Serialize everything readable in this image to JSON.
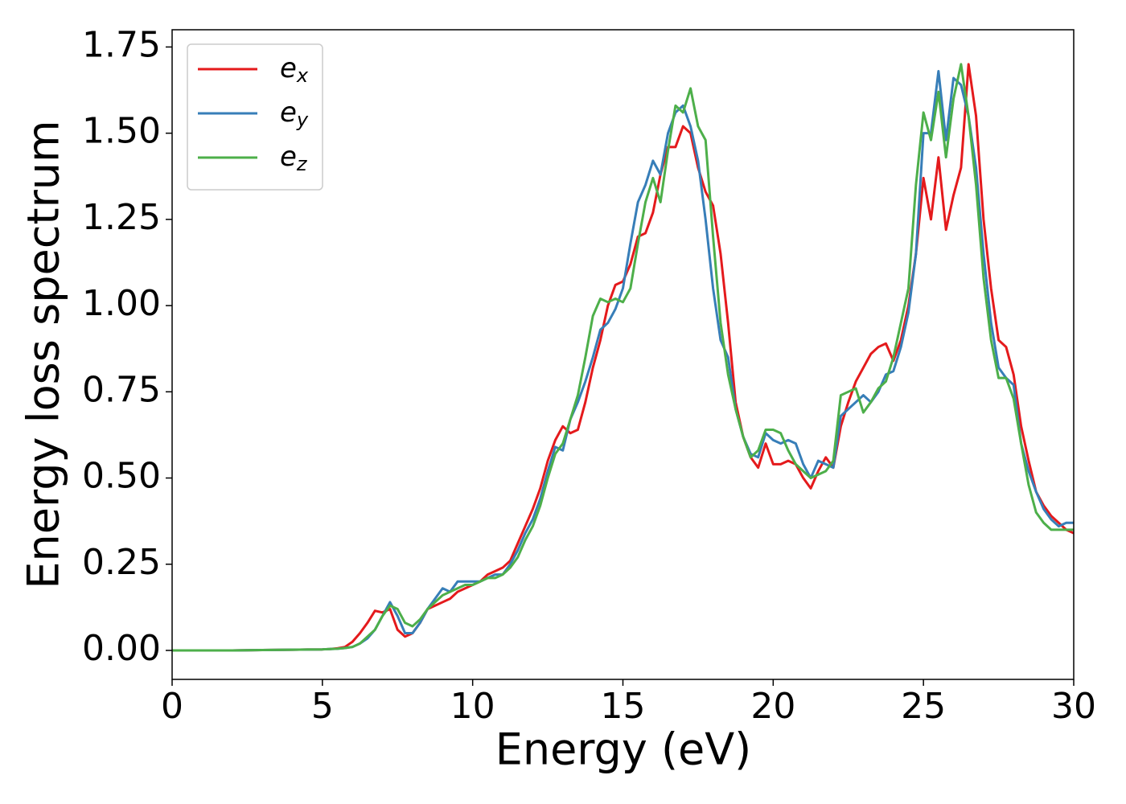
{
  "chart_data": {
    "type": "line",
    "xlabel": "Energy (eV)",
    "ylabel": "Energy loss spectrum",
    "xlim": [
      0,
      30
    ],
    "ylim": [
      -0.084,
      1.8
    ],
    "xticks": [
      0,
      5,
      10,
      15,
      20,
      25,
      30
    ],
    "yticks": [
      {
        "value": 0,
        "label": "0.00"
      },
      0.25,
      {
        "value": 0.5,
        "label": "0.50"
      },
      0.75,
      {
        "value": 1,
        "label": "1.00"
      },
      1.25,
      {
        "value": 1.5,
        "label": "1.50"
      },
      1.75
    ],
    "legend": "upper left",
    "x": [
      0,
      1,
      2,
      3,
      4,
      5,
      5.25,
      5.5,
      5.75,
      6,
      6.25,
      6.5,
      6.75,
      7,
      7.25,
      7.5,
      7.75,
      8,
      8.25,
      8.5,
      8.75,
      9,
      9.25,
      9.5,
      9.75,
      10,
      10.25,
      10.5,
      10.75,
      11,
      11.25,
      11.5,
      11.75,
      12,
      12.25,
      12.5,
      12.75,
      13,
      13.25,
      13.5,
      13.75,
      14,
      14.25,
      14.5,
      14.75,
      15,
      15.25,
      15.5,
      15.75,
      16,
      16.25,
      16.5,
      16.75,
      17,
      17.25,
      17.5,
      17.75,
      18,
      18.25,
      18.5,
      18.75,
      19,
      19.25,
      19.5,
      19.75,
      20,
      20.25,
      20.5,
      20.75,
      21,
      21.25,
      21.5,
      21.75,
      22,
      22.25,
      22.5,
      22.75,
      23,
      23.25,
      23.5,
      23.75,
      24,
      24.25,
      24.5,
      24.75,
      25,
      25.25,
      25.5,
      25.75,
      26,
      26.25,
      26.5,
      26.75,
      27,
      27.25,
      27.5,
      27.75,
      28,
      28.25,
      28.5,
      28.75,
      29,
      29.25,
      29.5,
      29.75,
      30
    ],
    "series": [
      {
        "name": "ex",
        "color": "#e41a1c",
        "values": [
          0,
          0,
          0,
          0.001,
          0.002,
          0.003,
          0.004,
          0.006,
          0.01,
          0.025,
          0.05,
          0.08,
          0.115,
          0.11,
          0.12,
          0.06,
          0.04,
          0.05,
          0.08,
          0.12,
          0.13,
          0.14,
          0.15,
          0.17,
          0.18,
          0.19,
          0.2,
          0.22,
          0.23,
          0.24,
          0.26,
          0.31,
          0.36,
          0.41,
          0.47,
          0.55,
          0.61,
          0.65,
          0.63,
          0.64,
          0.72,
          0.82,
          0.9,
          1.0,
          1.06,
          1.07,
          1.12,
          1.2,
          1.21,
          1.27,
          1.38,
          1.46,
          1.46,
          1.52,
          1.5,
          1.4,
          1.33,
          1.29,
          1.15,
          0.95,
          0.72,
          0.62,
          0.56,
          0.53,
          0.6,
          0.54,
          0.54,
          0.55,
          0.54,
          0.5,
          0.47,
          0.52,
          0.56,
          0.53,
          0.65,
          0.72,
          0.78,
          0.82,
          0.86,
          0.88,
          0.89,
          0.84,
          0.9,
          1.0,
          1.15,
          1.37,
          1.25,
          1.43,
          1.22,
          1.32,
          1.4,
          1.7,
          1.55,
          1.25,
          1.05,
          0.9,
          0.88,
          0.8,
          0.65,
          0.55,
          0.46,
          0.42,
          0.39,
          0.37,
          0.35,
          0.34
        ]
      },
      {
        "name": "ey",
        "color": "#377eb8",
        "values": [
          0,
          0,
          0,
          0.001,
          0.002,
          0.003,
          0.004,
          0.005,
          0.007,
          0.01,
          0.02,
          0.035,
          0.06,
          0.1,
          0.14,
          0.1,
          0.05,
          0.05,
          0.08,
          0.12,
          0.15,
          0.18,
          0.17,
          0.2,
          0.2,
          0.2,
          0.2,
          0.21,
          0.22,
          0.22,
          0.25,
          0.29,
          0.34,
          0.38,
          0.44,
          0.52,
          0.59,
          0.58,
          0.67,
          0.72,
          0.78,
          0.85,
          0.93,
          0.95,
          0.99,
          1.05,
          1.18,
          1.3,
          1.35,
          1.42,
          1.38,
          1.5,
          1.56,
          1.58,
          1.52,
          1.42,
          1.25,
          1.05,
          0.9,
          0.85,
          0.7,
          0.62,
          0.57,
          0.56,
          0.63,
          0.61,
          0.6,
          0.61,
          0.6,
          0.54,
          0.5,
          0.55,
          0.54,
          0.53,
          0.68,
          0.7,
          0.72,
          0.74,
          0.72,
          0.75,
          0.8,
          0.81,
          0.88,
          0.98,
          1.15,
          1.5,
          1.5,
          1.68,
          1.48,
          1.66,
          1.64,
          1.55,
          1.4,
          1.15,
          0.95,
          0.82,
          0.79,
          0.77,
          0.6,
          0.52,
          0.46,
          0.41,
          0.38,
          0.36,
          0.37,
          0.37
        ]
      },
      {
        "name": "ez",
        "color": "#4daf4a",
        "values": [
          0,
          0,
          0,
          0.001,
          0.002,
          0.003,
          0.004,
          0.005,
          0.007,
          0.01,
          0.02,
          0.04,
          0.06,
          0.1,
          0.13,
          0.12,
          0.08,
          0.07,
          0.09,
          0.12,
          0.14,
          0.16,
          0.17,
          0.18,
          0.19,
          0.19,
          0.2,
          0.21,
          0.21,
          0.22,
          0.24,
          0.27,
          0.32,
          0.36,
          0.42,
          0.5,
          0.57,
          0.6,
          0.67,
          0.74,
          0.85,
          0.97,
          1.02,
          1.01,
          1.02,
          1.01,
          1.05,
          1.18,
          1.3,
          1.37,
          1.3,
          1.45,
          1.58,
          1.56,
          1.63,
          1.52,
          1.48,
          1.2,
          0.95,
          0.8,
          0.7,
          0.62,
          0.56,
          0.58,
          0.64,
          0.64,
          0.63,
          0.58,
          0.54,
          0.52,
          0.5,
          0.51,
          0.52,
          0.55,
          0.74,
          0.75,
          0.76,
          0.69,
          0.72,
          0.76,
          0.78,
          0.85,
          0.95,
          1.05,
          1.35,
          1.56,
          1.48,
          1.62,
          1.43,
          1.6,
          1.7,
          1.55,
          1.35,
          1.08,
          0.9,
          0.79,
          0.79,
          0.73,
          0.6,
          0.48,
          0.4,
          0.37,
          0.35,
          0.35,
          0.35,
          0.35
        ]
      }
    ]
  }
}
